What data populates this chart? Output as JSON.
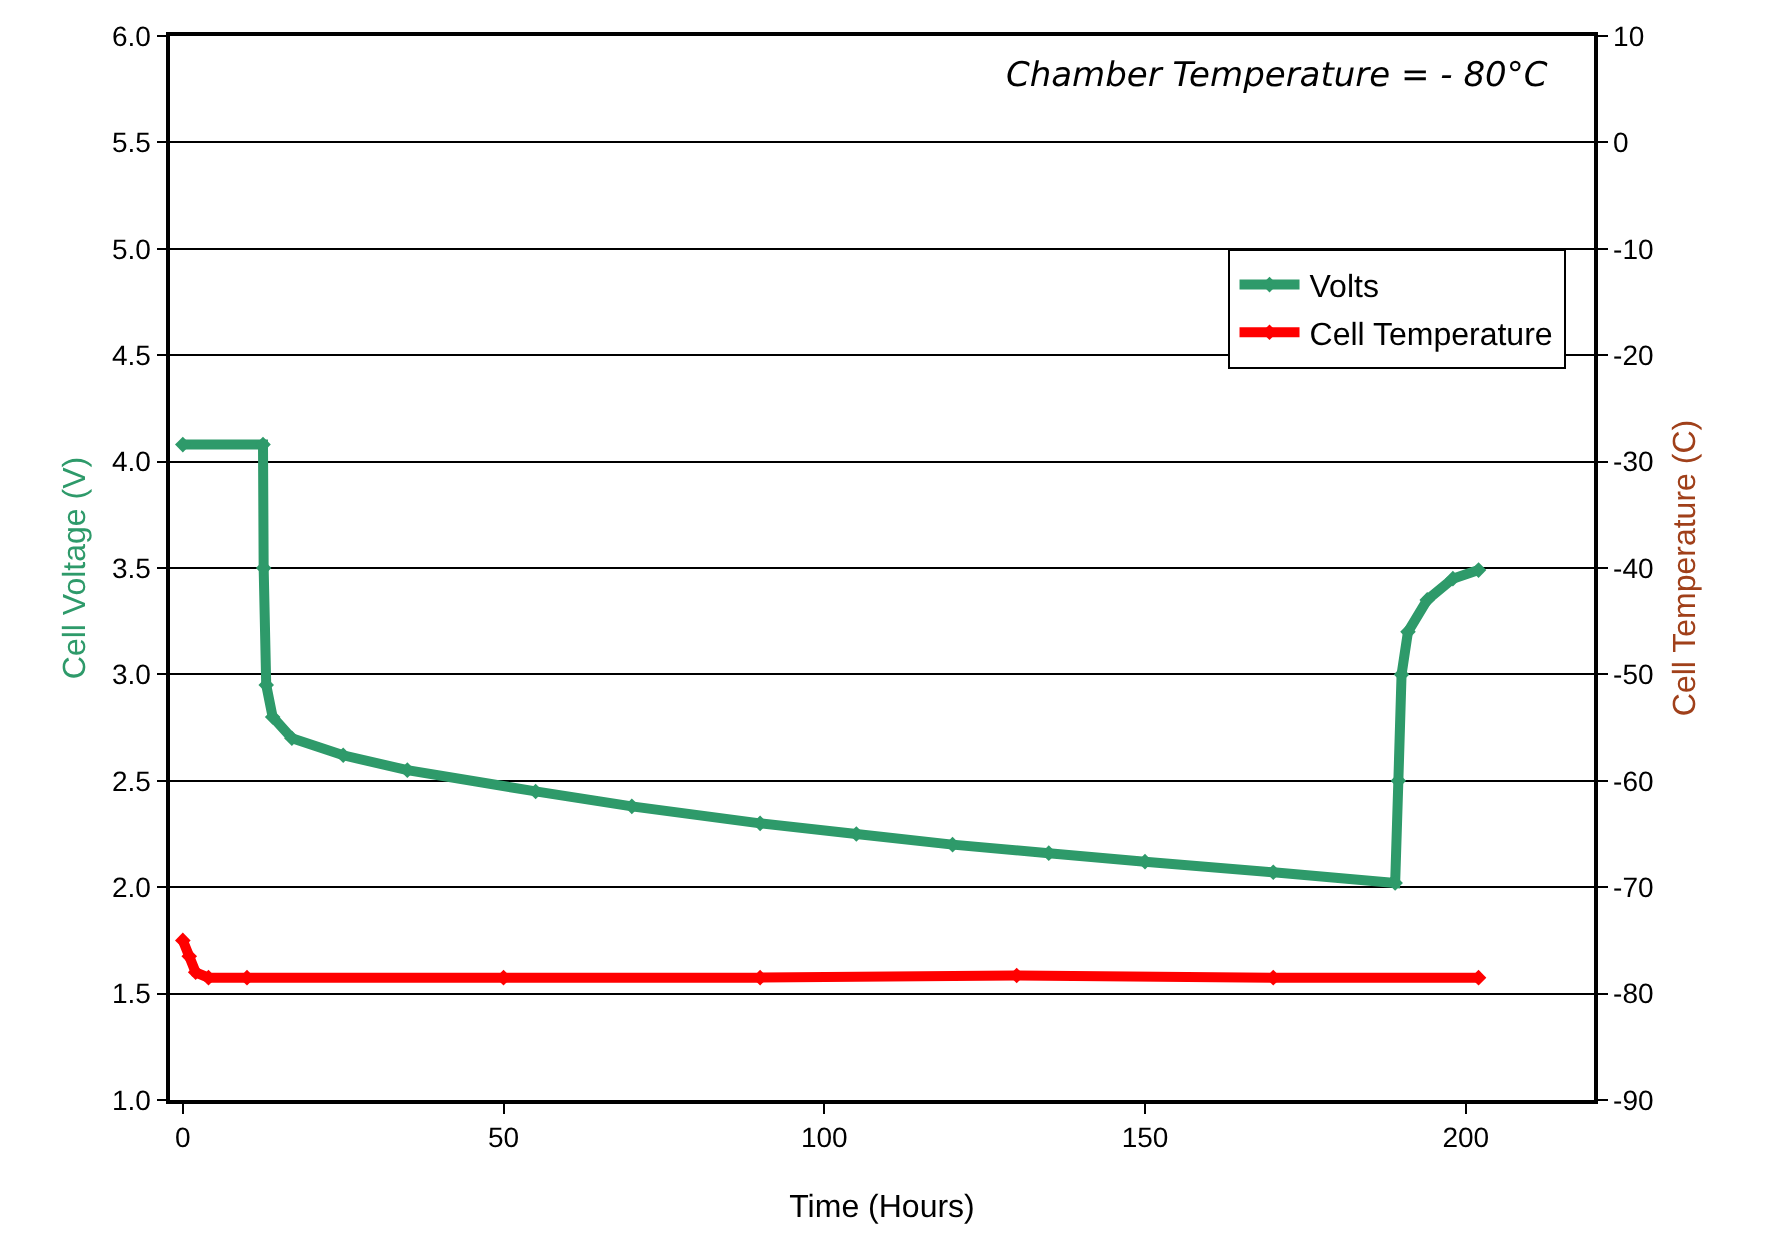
{
  "chart_data": {
    "type": "line",
    "xlabel": "Time (Hours)",
    "ylabel": "Cell Voltage (V)",
    "y2label": "Cell Temperature (C)",
    "annotations": [
      "Chamber Temperature = - 80°C"
    ],
    "xlim": [
      -2,
      220
    ],
    "xticks": [
      0,
      50,
      100,
      150,
      200
    ],
    "ylim": [
      1.0,
      6.0
    ],
    "yticks": [
      {
        "value": 1.0,
        "label": "1.0"
      },
      {
        "value": 1.5,
        "label": "1.5"
      },
      {
        "value": 2.0,
        "label": "2.0"
      },
      {
        "value": 2.5,
        "label": "2.5"
      },
      {
        "value": 3.0,
        "label": "3.0"
      },
      {
        "value": 3.5,
        "label": "3.5"
      },
      {
        "value": 4.0,
        "label": "4.0"
      },
      {
        "value": 4.5,
        "label": "4.5"
      },
      {
        "value": 5.0,
        "label": "5.0"
      },
      {
        "value": 5.5,
        "label": "5.5"
      },
      {
        "value": 6.0,
        "label": "6.0"
      }
    ],
    "y2lim": [
      -90,
      10
    ],
    "y2ticks": [
      -90,
      -80,
      -70,
      -60,
      -50,
      -40,
      -30,
      -20,
      -10,
      0,
      10
    ],
    "grid": "y",
    "legend": "top right",
    "marker": "diamond",
    "line_style": "solid",
    "series": [
      {
        "name": "Volts",
        "color": "#2e9a6a",
        "x": [
          0,
          12.5,
          12.6,
          13,
          14,
          17,
          25,
          35,
          55,
          70,
          90,
          105,
          120,
          135,
          150,
          170,
          189,
          189.5,
          190,
          191,
          194,
          198,
          202
        ],
        "values": [
          4.08,
          4.08,
          3.5,
          2.95,
          2.8,
          2.7,
          2.62,
          2.55,
          2.45,
          2.38,
          2.3,
          2.25,
          2.2,
          2.16,
          2.12,
          2.07,
          2.02,
          2.5,
          3.0,
          3.2,
          3.35,
          3.45,
          3.49
        ]
      },
      {
        "name": "Cell Temperature",
        "color": "#ff0000",
        "axis": "y2",
        "x": [
          0,
          1,
          2,
          4,
          10,
          50,
          90,
          130,
          170,
          202
        ],
        "values": [
          -75,
          -76.5,
          -78,
          -78.5,
          -78.5,
          -78.5,
          -78.5,
          -78.3,
          -78.5,
          -78.5
        ]
      }
    ]
  }
}
